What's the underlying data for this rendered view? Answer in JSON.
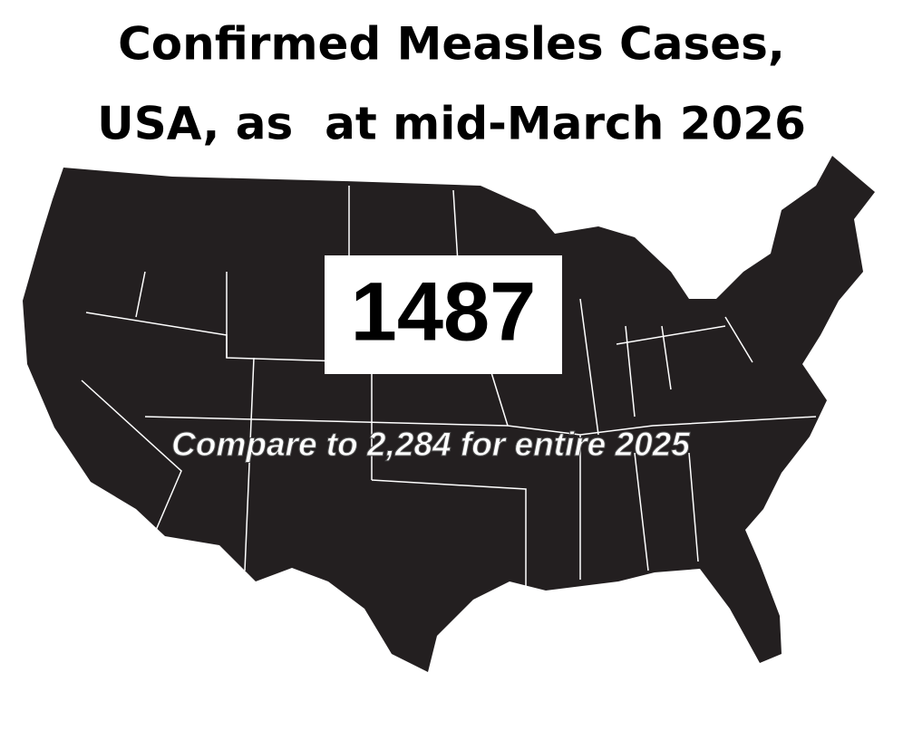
{
  "title_lines": [
    "Confirmed Measles Cases,",
    "USA, as  at mid-March 2026"
  ],
  "count": 1487,
  "comparison": "Compare to 2,284 for entire 2025"
}
